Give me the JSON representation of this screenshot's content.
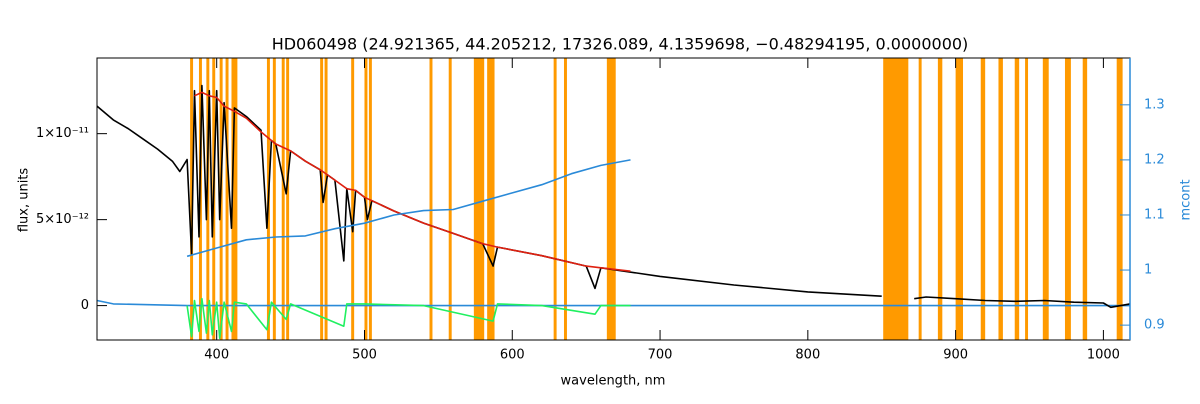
{
  "chart_data": {
    "type": "line",
    "title": "HD060498   (24.921365, 44.205212, 17326.089, 4.1359698, −0.48294195, 0.0000000)",
    "xlabel": "wavelength, nm",
    "ylabel": "flux, units",
    "y2label": "mcont",
    "xlim": [
      319,
      1018
    ],
    "xticks": [
      400,
      500,
      600,
      700,
      800,
      900,
      1000
    ],
    "ylim": [
      -2e-12,
      1.44e-11
    ],
    "yticks": [
      0,
      {
        "value": 5e-12,
        "label": "5×10⁻¹²"
      },
      {
        "value": 1e-11,
        "label": "1×10⁻¹¹"
      }
    ],
    "y2lim": [
      0.873,
      1.385
    ],
    "y2ticks": [
      0.9,
      1.0,
      1.1,
      1.2,
      1.3
    ],
    "y2color": "#2a8ad8",
    "band_color": "#ff9a00",
    "bands": [
      [
        382,
        384
      ],
      [
        388,
        390
      ],
      [
        393,
        395
      ],
      [
        397,
        399
      ],
      [
        402,
        404
      ],
      [
        406,
        408
      ],
      [
        410,
        414
      ],
      [
        434,
        436
      ],
      [
        438,
        440
      ],
      [
        444,
        446
      ],
      [
        447,
        449
      ],
      [
        470,
        472
      ],
      [
        473,
        475
      ],
      [
        491,
        493
      ],
      [
        500,
        502
      ],
      [
        503,
        505
      ],
      [
        544,
        546
      ],
      [
        557,
        559
      ],
      [
        574,
        581
      ],
      [
        583,
        588
      ],
      [
        628,
        630
      ],
      [
        635,
        637
      ],
      [
        664,
        670
      ],
      [
        851,
        868
      ],
      [
        875,
        877
      ],
      [
        888,
        891
      ],
      [
        900,
        905
      ],
      [
        917,
        920
      ],
      [
        929,
        932
      ],
      [
        940,
        943
      ],
      [
        947,
        949
      ],
      [
        959,
        963
      ],
      [
        974,
        978
      ],
      [
        986,
        989
      ],
      [
        1009,
        1013
      ]
    ],
    "series": [
      {
        "color": "#2a8ad8",
        "x": [
          319,
          330,
          380,
          1018
        ],
        "values": [
          3e-13,
          1e-13,
          0,
          0
        ]
      },
      {
        "color": "#000000",
        "x": [
          319,
          330,
          340,
          350,
          360,
          370,
          375,
          380,
          383,
          385,
          388,
          390,
          393,
          395,
          397,
          400,
          402,
          405,
          410,
          412,
          420,
          430,
          434,
          437,
          440,
          447,
          450,
          460,
          470,
          472,
          475,
          480,
          486,
          488,
          492,
          494,
          500,
          502,
          505,
          520,
          540,
          560,
          580,
          587,
          590,
          620,
          650,
          656,
          660,
          700,
          750,
          800,
          850,
          868,
          872,
          880,
          900,
          920,
          940,
          960,
          980,
          1000,
          1005,
          1018
        ],
        "values": [
          1.16e-11,
          1.08e-11,
          1.03e-11,
          9.7e-12,
          9.1e-12,
          8.4e-12,
          7.8e-12,
          8.5e-12,
          3e-12,
          1.25e-11,
          4e-12,
          1.28e-11,
          5e-12,
          1.25e-11,
          4e-12,
          1.25e-11,
          5e-12,
          1.18e-11,
          4.5e-12,
          1.15e-11,
          1.1e-11,
          1.02e-11,
          4.5e-12,
          9.6e-12,
          9.4e-12,
          6.5e-12,
          9e-12,
          8.4e-12,
          7.9e-12,
          6e-12,
          7.6e-12,
          7.3e-12,
          2.6e-12,
          6.8e-12,
          4.3e-12,
          6.7e-12,
          6.3e-12,
          5e-12,
          6.1e-12,
          5.5e-12,
          4.8e-12,
          4.2e-12,
          3.6e-12,
          2.3e-12,
          3.4e-12,
          2.9e-12,
          2.3e-12,
          1e-12,
          2.2e-12,
          1.7e-12,
          1.2e-12,
          8e-13,
          5.5e-13,
          null,
          4e-13,
          5e-13,
          4e-13,
          3e-13,
          2.5e-13,
          3e-13,
          2e-13,
          1.5e-13,
          -1e-13,
          1e-13
        ]
      },
      {
        "color": "#e02010",
        "x": [
          385,
          390,
          395,
          400,
          405,
          412,
          420,
          430,
          437,
          440,
          450,
          460,
          470,
          475,
          480,
          488,
          494,
          500,
          505,
          520,
          540,
          560,
          580,
          590,
          620,
          650,
          660,
          680
        ],
        "values": [
          1.22e-11,
          1.24e-11,
          1.22e-11,
          1.21e-11,
          1.16e-11,
          1.13e-11,
          1.09e-11,
          1.01e-11,
          9.6e-12,
          9.4e-12,
          9e-12,
          8.4e-12,
          7.9e-12,
          7.6e-12,
          7.3e-12,
          6.8e-12,
          6.7e-12,
          6.3e-12,
          6.1e-12,
          5.5e-12,
          4.8e-12,
          4.2e-12,
          3.6e-12,
          3.4e-12,
          2.9e-12,
          2.3e-12,
          2.2e-12,
          2e-12
        ]
      },
      {
        "color": "#2a8ad8",
        "axis": "y2",
        "x": [
          380,
          400,
          420,
          440,
          460,
          480,
          500,
          520,
          540,
          560,
          580,
          600,
          620,
          640,
          660,
          680
        ],
        "values": [
          1.025,
          1.04,
          1.055,
          1.06,
          1.062,
          1.075,
          1.085,
          1.1,
          1.108,
          1.11,
          1.125,
          1.14,
          1.155,
          1.175,
          1.19,
          1.2
        ]
      },
      {
        "color": "#20f060",
        "x": [
          380,
          383,
          385,
          388,
          390,
          393,
          395,
          397,
          400,
          402,
          405,
          410,
          412,
          420,
          434,
          437,
          447,
          450,
          486,
          488,
          500,
          540,
          587,
          590,
          620,
          656,
          660,
          680
        ],
        "values": [
          0,
          -1.8e-12,
          3e-13,
          -1.5e-12,
          4e-13,
          -1.6e-12,
          3e-13,
          -1.7e-12,
          2e-13,
          -1.9e-12,
          2e-13,
          -1.5e-12,
          2e-13,
          1e-13,
          -1.4e-12,
          2e-13,
          -8e-13,
          1e-13,
          -1.2e-12,
          1e-13,
          1e-13,
          0,
          -9e-13,
          1e-13,
          0,
          -5e-13,
          0,
          0
        ]
      }
    ]
  }
}
